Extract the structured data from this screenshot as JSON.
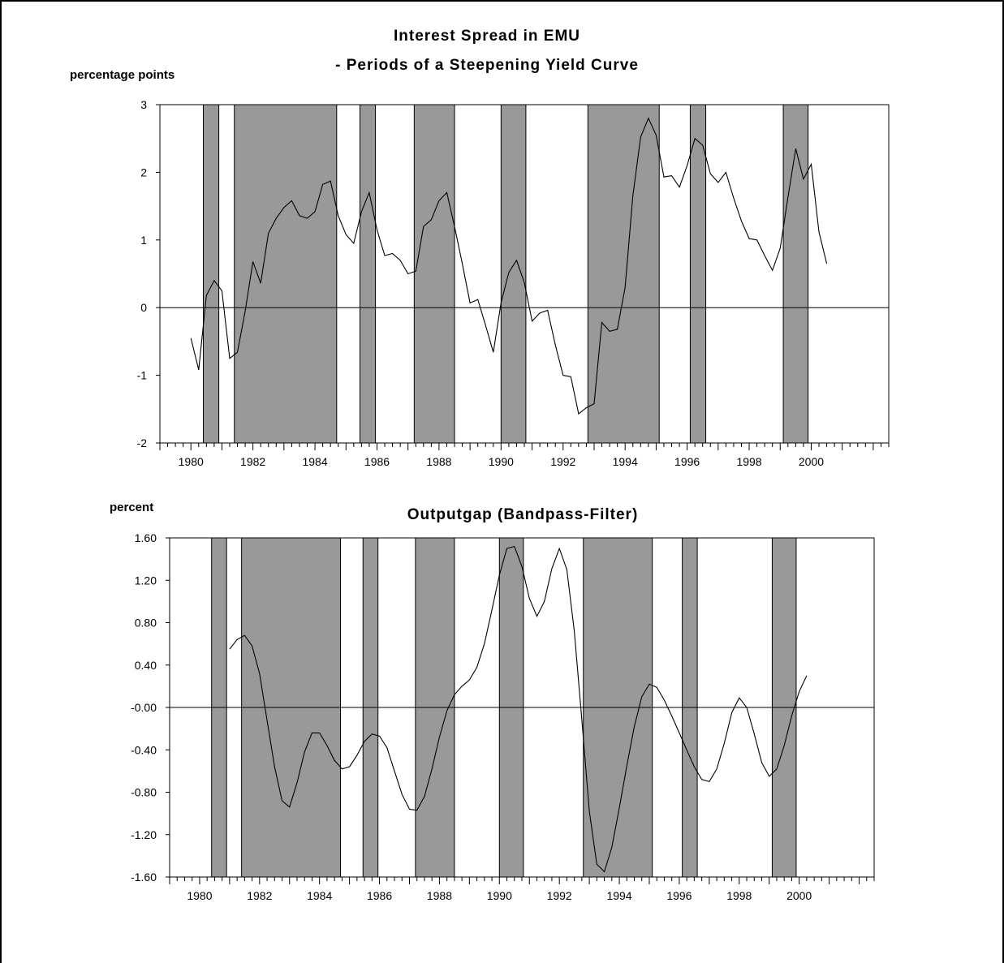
{
  "chart_data": [
    {
      "type": "line",
      "title": "Interest Spread in EMU",
      "subtitle": "- Periods of a Steepening Yield Curve",
      "ylabel": "percentage points",
      "ylim": [
        -2,
        3
      ],
      "yticks": [
        "-2",
        "-1",
        "0",
        "1",
        "2",
        "3"
      ],
      "xticks": [
        "1980",
        "1982",
        "1984",
        "1986",
        "1988",
        "1990",
        "1992",
        "1994",
        "1996",
        "1998",
        "2000"
      ],
      "xlim": [
        1979.0,
        2002.5
      ],
      "shaded_periods": [
        [
          1980.4,
          1980.9
        ],
        [
          1981.4,
          1984.7
        ],
        [
          1985.45,
          1985.95
        ],
        [
          1987.2,
          1988.5
        ],
        [
          1990.0,
          1990.8
        ],
        [
          1992.8,
          1995.1
        ],
        [
          1996.1,
          1996.6
        ],
        [
          1999.1,
          1999.9
        ]
      ],
      "x": [
        1980.0,
        1980.25,
        1980.5,
        1980.75,
        1981.0,
        1981.25,
        1981.5,
        1981.75,
        1982.0,
        1982.25,
        1982.5,
        1982.75,
        1983.0,
        1983.25,
        1983.5,
        1983.75,
        1984.0,
        1984.25,
        1984.5,
        1984.75,
        1985.0,
        1985.25,
        1985.5,
        1985.75,
        1986.0,
        1986.25,
        1986.5,
        1986.75,
        1987.0,
        1987.25,
        1987.5,
        1987.75,
        1988.0,
        1988.25,
        1988.5,
        1988.75,
        1989.0,
        1989.25,
        1989.5,
        1989.75,
        1990.0,
        1990.25,
        1990.5,
        1990.75,
        1991.0,
        1991.25,
        1991.5,
        1991.75,
        1992.0,
        1992.25,
        1992.5,
        1992.75,
        1993.0,
        1993.25,
        1993.5,
        1993.75,
        1994.0,
        1994.25,
        1994.5,
        1994.75,
        1995.0,
        1995.25,
        1995.5,
        1995.75,
        1996.0,
        1996.25,
        1996.5,
        1996.75,
        1997.0,
        1997.25,
        1997.5,
        1997.75,
        1998.0,
        1998.25,
        1998.5,
        1998.75,
        1999.0,
        1999.25,
        1999.5,
        1999.75,
        2000.0,
        2000.25,
        2000.5,
        2000.75,
        2001.0,
        2001.25
      ],
      "series": [
        {
          "values": [
            -0.45,
            -0.92,
            0.18,
            0.4,
            0.25,
            -0.75,
            -0.66,
            -0.05,
            0.68,
            0.36,
            1.1,
            1.32,
            1.48,
            1.58,
            1.36,
            1.32,
            1.42,
            1.82,
            1.87,
            1.36,
            1.08,
            0.95,
            1.42,
            1.7,
            1.15,
            0.77,
            0.8,
            0.7,
            0.5,
            0.54,
            1.2,
            1.3,
            1.58,
            1.7,
            1.2,
            0.65,
            0.07,
            0.12,
            -0.26,
            -0.66,
            0.07,
            0.52,
            0.7,
            0.37,
            -0.2,
            -0.08,
            -0.04,
            -0.55,
            -1.0,
            -1.02,
            -1.57,
            -1.48,
            -1.42,
            -0.22,
            -0.35,
            -0.32,
            0.3,
            1.65,
            2.52,
            2.8,
            2.55,
            1.93,
            1.95,
            1.78,
            2.1,
            2.5,
            2.4,
            1.98,
            1.85,
            2.0,
            1.62,
            1.28,
            1.02,
            1.0,
            0.77,
            0.55,
            0.88,
            1.63,
            2.35,
            1.9,
            2.12,
            1.12,
            0.65,
            null,
            null,
            null
          ]
        }
      ]
    },
    {
      "type": "line",
      "title": "Outputgap (Bandpass-Filter)",
      "ylabel": "percent",
      "ylim": [
        -1.6,
        1.6
      ],
      "yticks": [
        "-1.60",
        "-1.20",
        "-0.80",
        "-0.40",
        "-0.00",
        "0.40",
        "0.80",
        "1.20",
        "1.60"
      ],
      "xticks": [
        "1980",
        "1982",
        "1984",
        "1986",
        "1988",
        "1990",
        "1992",
        "1994",
        "1996",
        "1998",
        "2000"
      ],
      "xlim": [
        1979.0,
        2002.5
      ],
      "shaded_periods": [
        [
          1980.4,
          1980.9
        ],
        [
          1981.4,
          1984.7
        ],
        [
          1985.45,
          1985.95
        ],
        [
          1987.2,
          1988.5
        ],
        [
          1990.0,
          1990.8
        ],
        [
          1992.8,
          1995.1
        ],
        [
          1996.1,
          1996.6
        ],
        [
          1999.1,
          1999.9
        ]
      ],
      "x": [
        1981.0,
        1981.25,
        1981.5,
        1981.75,
        1982.0,
        1982.25,
        1982.5,
        1982.75,
        1983.0,
        1983.25,
        1983.5,
        1983.75,
        1984.0,
        1984.25,
        1984.5,
        1984.75,
        1985.0,
        1985.25,
        1985.5,
        1985.75,
        1986.0,
        1986.25,
        1986.5,
        1986.75,
        1987.0,
        1987.25,
        1987.5,
        1987.75,
        1988.0,
        1988.25,
        1988.5,
        1988.75,
        1989.0,
        1989.25,
        1989.5,
        1989.75,
        1990.0,
        1990.25,
        1990.5,
        1990.75,
        1991.0,
        1991.25,
        1991.5,
        1991.75,
        1992.0,
        1992.25,
        1992.5,
        1992.75,
        1993.0,
        1993.25,
        1993.5,
        1993.75,
        1994.0,
        1994.25,
        1994.5,
        1994.75,
        1995.0,
        1995.25,
        1995.5,
        1995.75,
        1996.0,
        1996.25,
        1996.5,
        1996.75,
        1997.0,
        1997.25,
        1997.5,
        1997.75,
        1998.0,
        1998.25,
        1998.5,
        1998.75,
        1999.0,
        1999.25,
        1999.5,
        1999.75,
        2000.0,
        2000.25,
        2000.5,
        2000.75,
        2001.0
      ],
      "series": [
        {
          "values": [
            0.55,
            0.64,
            0.68,
            0.58,
            0.32,
            -0.12,
            -0.56,
            -0.88,
            -0.94,
            -0.71,
            -0.42,
            -0.24,
            -0.24,
            -0.36,
            -0.5,
            -0.58,
            -0.56,
            -0.45,
            -0.32,
            -0.25,
            -0.27,
            -0.38,
            -0.6,
            -0.82,
            -0.96,
            -0.97,
            -0.84,
            -0.58,
            -0.28,
            -0.03,
            0.12,
            0.2,
            0.26,
            0.38,
            0.6,
            0.92,
            1.25,
            1.5,
            1.52,
            1.33,
            1.03,
            0.86,
            1.0,
            1.31,
            1.5,
            1.3,
            0.72,
            -0.12,
            -0.98,
            -1.48,
            -1.55,
            -1.32,
            -0.95,
            -0.55,
            -0.18,
            0.1,
            0.22,
            0.19,
            0.07,
            -0.08,
            -0.24,
            -0.4,
            -0.56,
            -0.68,
            -0.7,
            -0.58,
            -0.34,
            -0.05,
            0.09,
            0.0,
            -0.25,
            -0.52,
            -0.65,
            -0.58,
            -0.36,
            -0.08,
            0.15,
            0.3,
            null,
            null,
            null
          ]
        }
      ]
    }
  ]
}
